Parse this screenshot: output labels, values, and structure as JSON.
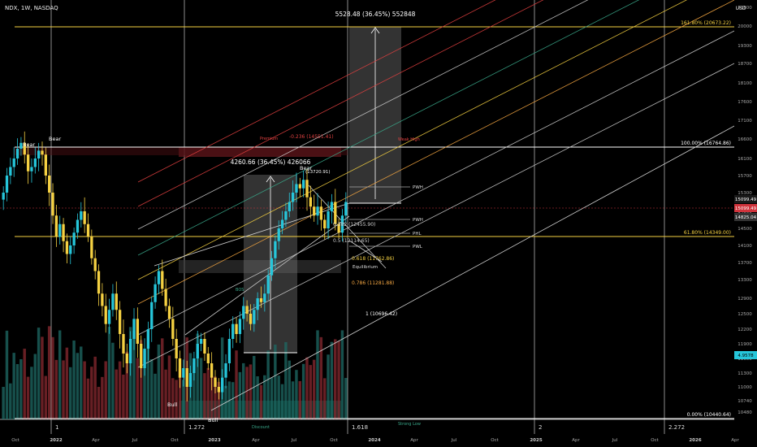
{
  "header": {
    "symbol": "NDX, 1W, NASDAQ",
    "currency": "USD"
  },
  "chart_data": {
    "type": "candlestick",
    "price_ticks": [
      10480,
      10740,
      11000,
      11300,
      11600,
      11900,
      12200,
      12500,
      12900,
      13300,
      13700,
      14100,
      14500,
      14900,
      15300,
      15700,
      16100,
      16600,
      17100,
      17600,
      18100,
      18700,
      19300,
      20000,
      20800
    ],
    "time_ticks": [
      "Oct",
      "2022",
      "Apr",
      "Jul",
      "Oct",
      "2023",
      "Apr",
      "Jul",
      "Oct",
      "2024",
      "Apr",
      "Jul",
      "Oct",
      "2025",
      "Apr",
      "Jul",
      "Oct",
      "2026",
      "Apr"
    ],
    "price_markers": [
      {
        "label": "15099.49",
        "color": "#ffffff",
        "bg": "#1a1a1a"
      },
      {
        "label": "15099.49",
        "color": "#ffffff",
        "bg": "#d0343c"
      },
      {
        "label": "14825.04",
        "color": "#ffffff",
        "bg": "#333333"
      },
      {
        "label": "4.9578",
        "color": "#000000",
        "bg": "#26c6da"
      }
    ],
    "fib_levels": [
      {
        "label": "161.80% (20673.22)",
        "color": "#f5d142"
      },
      {
        "label": "100.00% (16764.86)",
        "color": "#ffffff"
      },
      {
        "label": "61.80% (14349.00)",
        "color": "#f5d142"
      },
      {
        "label": "0.00% (10440.64)",
        "color": "#ffffff"
      }
    ],
    "measure_boxes": [
      {
        "label": "5528.48 (36.45%) 552848"
      },
      {
        "label": "4260.66 (36.45%) 426066"
      }
    ],
    "retracements": [
      {
        "label": "0.618 (11762.86)",
        "color": "#f5d142"
      },
      {
        "label": "0.786 (11281.88)",
        "color": "#f5a742"
      },
      {
        "label": "1 (10696.42)",
        "color": "#ffffff"
      },
      {
        "label": "-0.236 (14551.41)",
        "color": "#e04040"
      },
      {
        "label": "0.382 (12455.90)",
        "color": "#cccccc"
      },
      {
        "label": "0.5 (12114.65)",
        "color": "#cccccc"
      }
    ],
    "annotations": [
      "Bear",
      "Bear",
      "Bear",
      "Bull",
      "Bull",
      "(13720.91)",
      "Premium",
      "Equilibrium",
      "PWH",
      "PWL",
      "PHL",
      "BOS",
      "Discount",
      "Strong Low",
      "Weak High"
    ],
    "time_cycle_labels": [
      "1",
      "1.272",
      "1.618",
      "2",
      "2.272"
    ],
    "ohlc_weekly_close": [
      15300,
      15700,
      15900,
      16100,
      16350,
      16500,
      16200,
      15800,
      15900,
      16100,
      16300,
      16200,
      15700,
      15300,
      14800,
      14300,
      14600,
      14200,
      13900,
      14100,
      14400,
      14700,
      14900,
      14600,
      14300,
      13800,
      13500,
      13000,
      12700,
      12300,
      12600,
      13000,
      12600,
      12100,
      11700,
      11500,
      12000,
      12400,
      11900,
      11400,
      11800,
      12200,
      12800,
      13200,
      13500,
      13100,
      12700,
      12400,
      12000,
      11600,
      11200,
      11400,
      11000,
      11300,
      11600,
      11900,
      12000,
      11700,
      11500,
      11200,
      11000,
      10900,
      11200,
      11500,
      12000,
      12300,
      12100,
      12400,
      12700,
      12500,
      12300,
      12600,
      12900,
      12800,
      13000,
      13400,
      13800,
      14200,
      14500,
      14700,
      14900,
      15100,
      15300,
      15500,
      15400,
      15600,
      15200,
      15000,
      14800,
      15000,
      14700,
      14500,
      14900,
      15100,
      14600,
      14400,
      14800,
      15099
    ]
  }
}
